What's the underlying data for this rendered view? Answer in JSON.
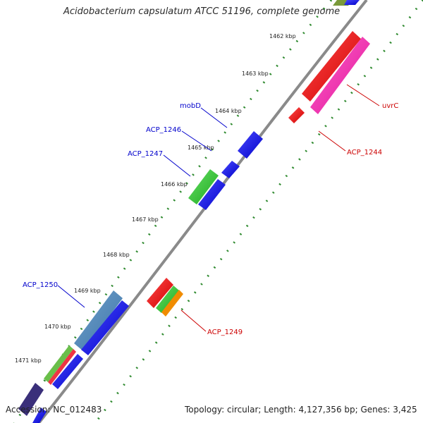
{
  "title": "Acidobacterium capsulatum ATCC 51196, complete genome",
  "footer": {
    "accession": "Accession: NC_012483",
    "topology": "Topology: circular; Length: 4,127,356 bp; Genes: 3,425"
  },
  "ticks": [
    "1462 kbp",
    "1463 kbp",
    "1464 kbp",
    "1465 kbp",
    "1466 kbp",
    "1467 kbp",
    "1468 kbp",
    "1469 kbp",
    "1470 kbp",
    "1471 kbp"
  ],
  "gene_labels": {
    "mobD": "mobD",
    "acp1246": "ACP_1246",
    "acp1247": "ACP_1247",
    "acp1250": "ACP_1250",
    "uvrC": "uvrC",
    "acp1244": "ACP_1244",
    "acp1249": "ACP_1249"
  },
  "colors": {
    "backbone": "#8a8a8a",
    "tick_dots": "#2f8a2f",
    "forward_label": "#0000cc",
    "reverse_label": "#cc0000"
  }
}
